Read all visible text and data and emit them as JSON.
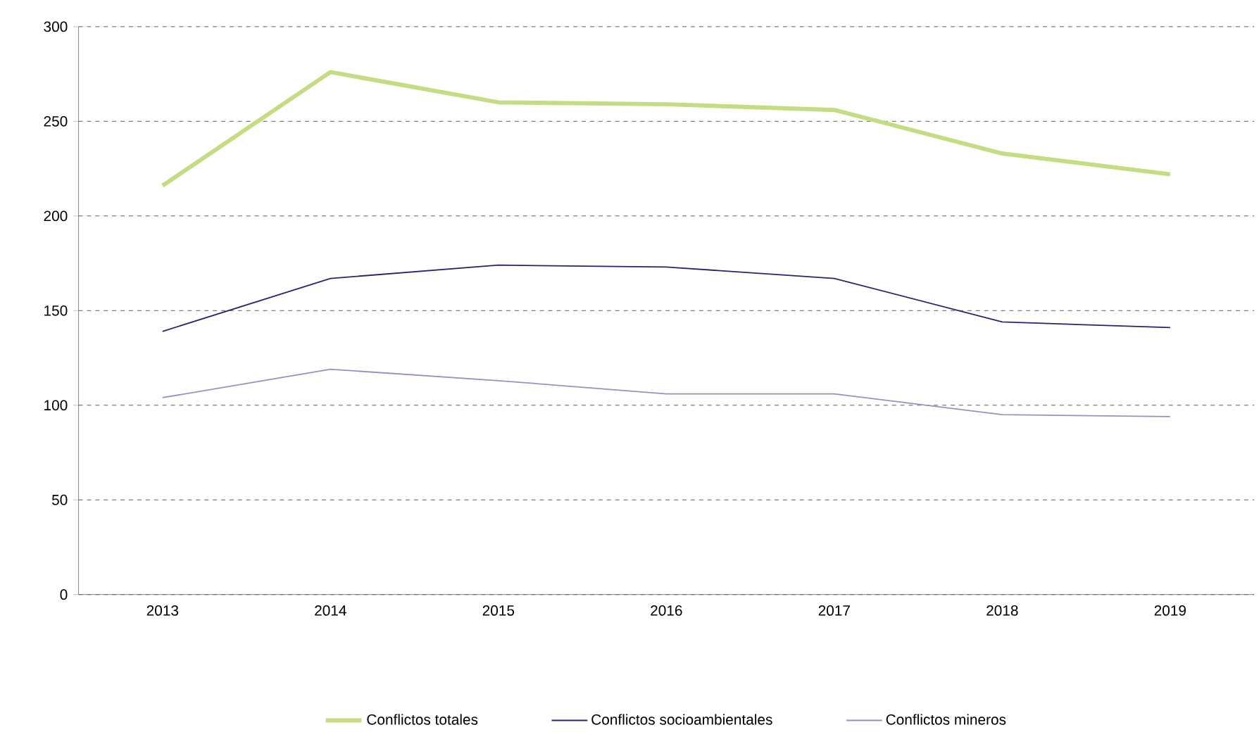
{
  "chart_data": {
    "type": "line",
    "categories": [
      "2013",
      "2014",
      "2015",
      "2016",
      "2017",
      "2018",
      "2019"
    ],
    "series": [
      {
        "name": "Conflictos totales",
        "color": "#c5dc82",
        "values": [
          216,
          276,
          260,
          259,
          256,
          233,
          222
        ]
      },
      {
        "name": "Conflictos socioambientales",
        "color": "#2b2270",
        "values": [
          139,
          167,
          174,
          173,
          167,
          144,
          141
        ]
      },
      {
        "name": "Conflictos mineros",
        "color": "#a08cc0",
        "values": [
          104,
          119,
          113,
          106,
          106,
          95,
          94
        ]
      }
    ],
    "ylim": [
      0,
      300
    ],
    "yticks": [
      0,
      50,
      100,
      150,
      200,
      250,
      300
    ],
    "grid": "y",
    "legend": "bottom",
    "marker": "none",
    "line_style": "solid"
  }
}
